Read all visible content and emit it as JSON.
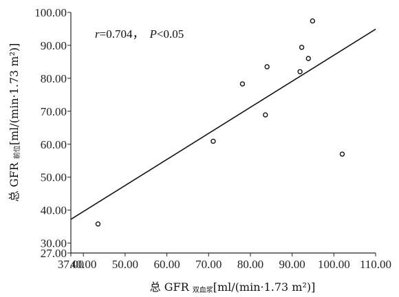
{
  "chart_data": {
    "type": "scatter",
    "xlabel": {
      "main": "总 GFR ",
      "sub": "双血浆",
      "unit": "[ml/(min·1.73 m²)]"
    },
    "ylabel": {
      "main": "总 GFR ",
      "sub": "前位",
      "unit": "[ml/(min·1.73 m²)]"
    },
    "xlim": [
      37.0,
      110.0
    ],
    "ylim": [
      27.0,
      100.0
    ],
    "xticks": [
      "37.00",
      "40.00",
      "50.00",
      "60.00",
      "70.00",
      "80.00",
      "90.00",
      "100.00",
      "110.00"
    ],
    "xtick_values": [
      37,
      40,
      50,
      60,
      70,
      80,
      90,
      100,
      110
    ],
    "yticks": [
      "27.00",
      "30.00",
      "40.00",
      "50.00",
      "60.00",
      "70.00",
      "80.00",
      "90.00",
      "100.00"
    ],
    "ytick_values": [
      27,
      30,
      40,
      50,
      60,
      70,
      80,
      90,
      100
    ],
    "points": [
      {
        "x": 43.5,
        "y": 35.8
      },
      {
        "x": 71.1,
        "y": 60.9
      },
      {
        "x": 78.1,
        "y": 78.3
      },
      {
        "x": 83.6,
        "y": 68.9
      },
      {
        "x": 84.0,
        "y": 83.5
      },
      {
        "x": 91.9,
        "y": 82.0
      },
      {
        "x": 92.3,
        "y": 89.4
      },
      {
        "x": 93.9,
        "y": 86.0
      },
      {
        "x": 94.9,
        "y": 97.4
      },
      {
        "x": 102.0,
        "y": 57.0
      }
    ],
    "fit_line": {
      "x": [
        37.0,
        110.0
      ],
      "y": [
        37.2,
        94.9
      ]
    },
    "annotation": {
      "r_symbol": "r",
      "r_value": "=0.704，",
      "p_symbol": "P",
      "p_value": "<0.05"
    },
    "grid": false
  }
}
